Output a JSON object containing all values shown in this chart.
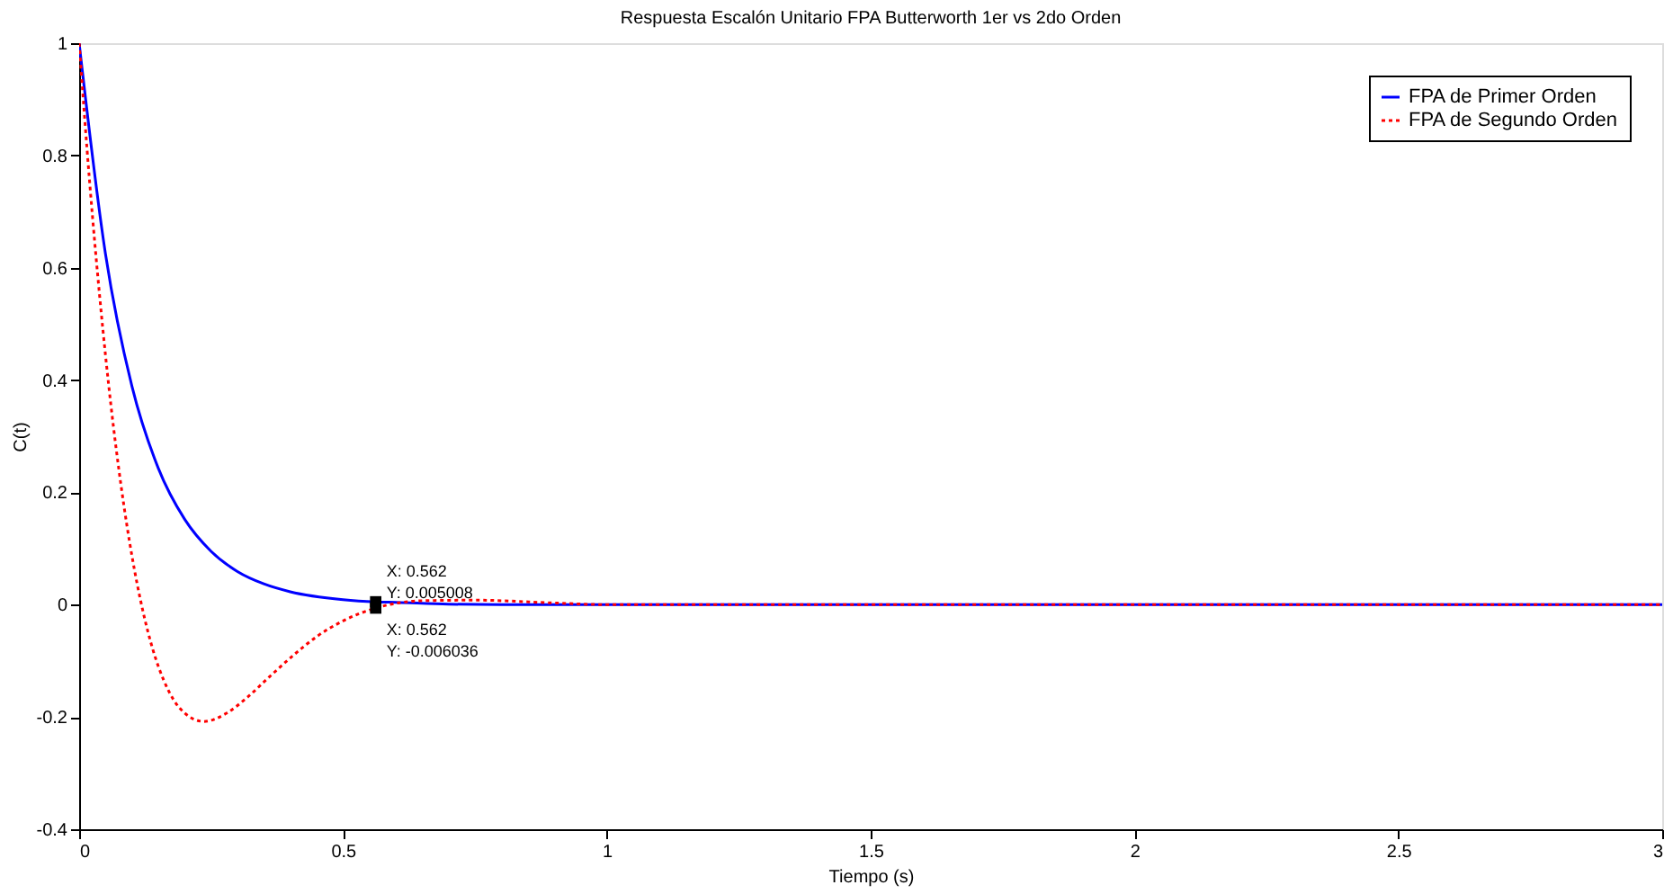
{
  "chart_data": {
    "type": "line",
    "title": "Respuesta Escalón Unitario FPA Butterworth 1er vs 2do Orden",
    "xlabel": "Tiempo (s)",
    "ylabel": "C(t)",
    "series": [
      {
        "name": "FPA de Primer Orden",
        "color": "#0000ff",
        "line_style": "solid",
        "x": [
          0,
          0.05,
          0.1,
          0.15,
          0.2,
          0.25,
          0.3,
          0.35,
          0.4,
          0.5,
          0.562,
          0.6,
          0.7,
          0.8,
          1.0,
          3.0
        ],
        "values": [
          1,
          0.624,
          0.389,
          0.243,
          0.152,
          0.095,
          0.059,
          0.037,
          0.023,
          0.009,
          0.005008,
          0.004,
          0.001,
          0,
          0,
          0
        ]
      },
      {
        "name": "FPA de Segundo Orden",
        "color": "#ff0000",
        "line_style": "dotted",
        "x": [
          0,
          0.02,
          0.04,
          0.06,
          0.08,
          0.1,
          0.12,
          0.14,
          0.16,
          0.18,
          0.2,
          0.236,
          0.28,
          0.32,
          0.36,
          0.4,
          0.45,
          0.5,
          0.562,
          0.65,
          0.75,
          0.9,
          1.0,
          3.0
        ],
        "values": [
          1,
          0.751,
          0.538,
          0.357,
          0.208,
          0.087,
          -0.008,
          -0.081,
          -0.134,
          -0.171,
          -0.193,
          -0.208,
          -0.193,
          -0.164,
          -0.129,
          -0.095,
          -0.057,
          -0.029,
          -0.006036,
          0.007,
          0.008,
          0.003,
          0,
          0
        ]
      }
    ],
    "annotations": [
      {
        "text": "X: 0.562\nY: 0.005008",
        "x": 0.562,
        "y": 0.005008
      },
      {
        "text": "X: 0.562\nY: -0.006036",
        "x": 0.562,
        "y": -0.006036
      }
    ],
    "xlim": [
      0,
      3
    ],
    "xticks": [
      0,
      0.5,
      1,
      1.5,
      2,
      2.5,
      3
    ],
    "ylim": [
      -0.4,
      1
    ],
    "yticks": [
      -0.4,
      -0.2,
      0,
      0.2,
      0.4,
      0.6,
      0.8,
      1
    ],
    "grid": false,
    "legend": "top right"
  }
}
